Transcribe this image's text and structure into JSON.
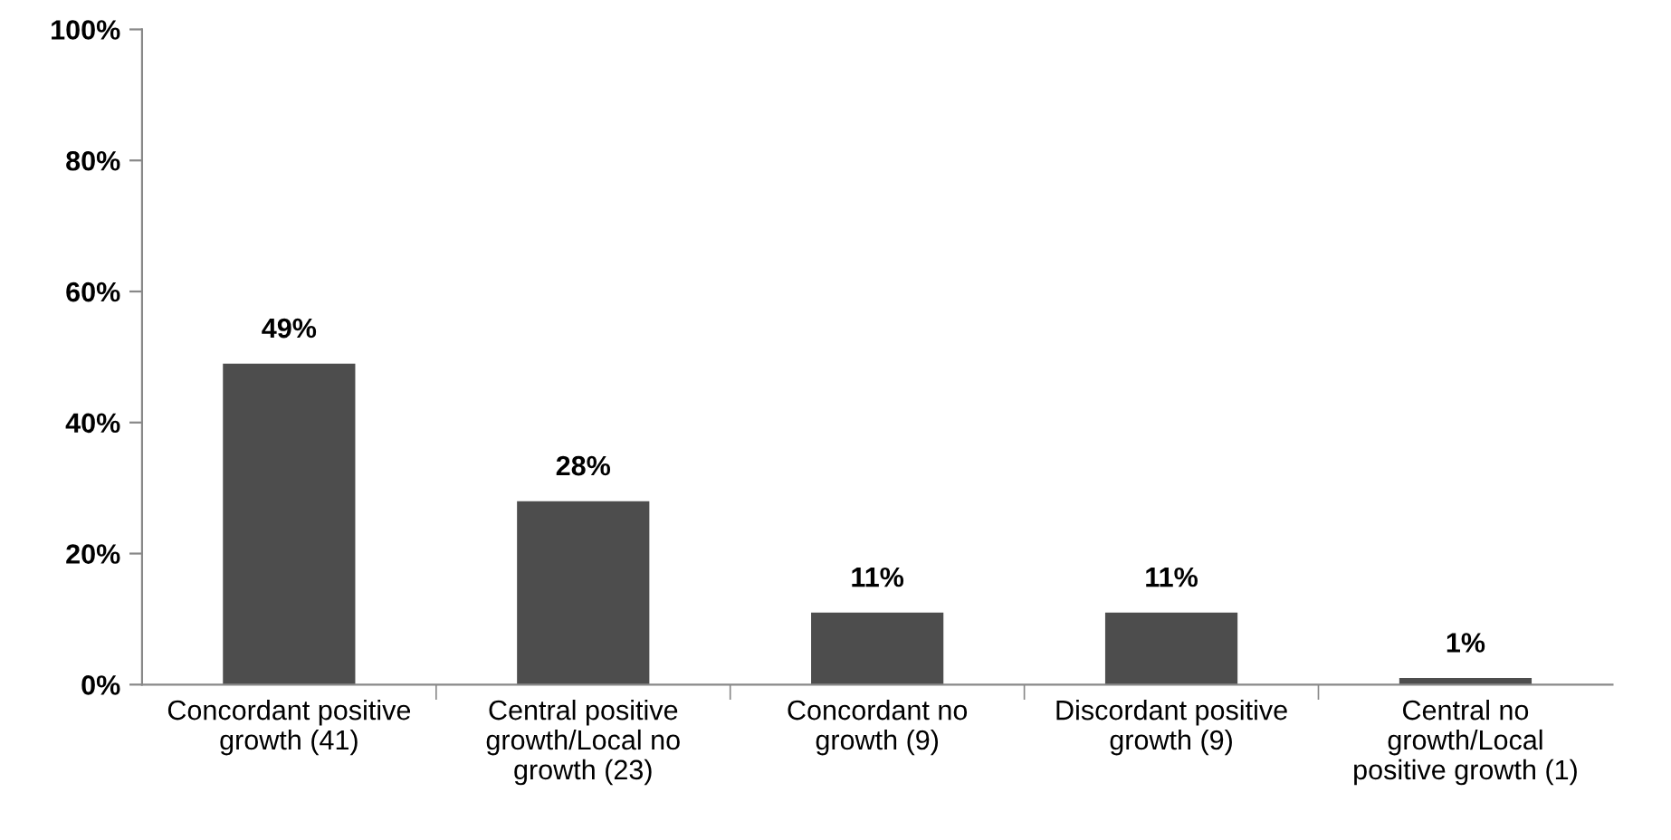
{
  "chart_data": {
    "type": "bar",
    "categories": [
      "Concordant positive\ngrowth (41)",
      "Central positive\ngrowth/Local no\ngrowth (23)",
      "Concordant no\ngrowth (9)",
      "Discordant positive\ngrowth (9)",
      "Central no\ngrowth/Local\npositive growth (1)"
    ],
    "values": [
      49,
      28,
      11,
      11,
      1
    ],
    "value_labels": [
      "49%",
      "28%",
      "11%",
      "11%",
      "1%"
    ],
    "color": "#4d4d4d",
    "ylim": [
      0,
      100
    ],
    "yticks": [
      {
        "value": 0,
        "label": "0%"
      },
      {
        "value": 20,
        "label": "20%"
      },
      {
        "value": 40,
        "label": "40%"
      },
      {
        "value": 60,
        "label": "60%"
      },
      {
        "value": 80,
        "label": "80%"
      },
      {
        "value": 100,
        "label": "100%"
      }
    ],
    "grid": false,
    "legend": false
  }
}
